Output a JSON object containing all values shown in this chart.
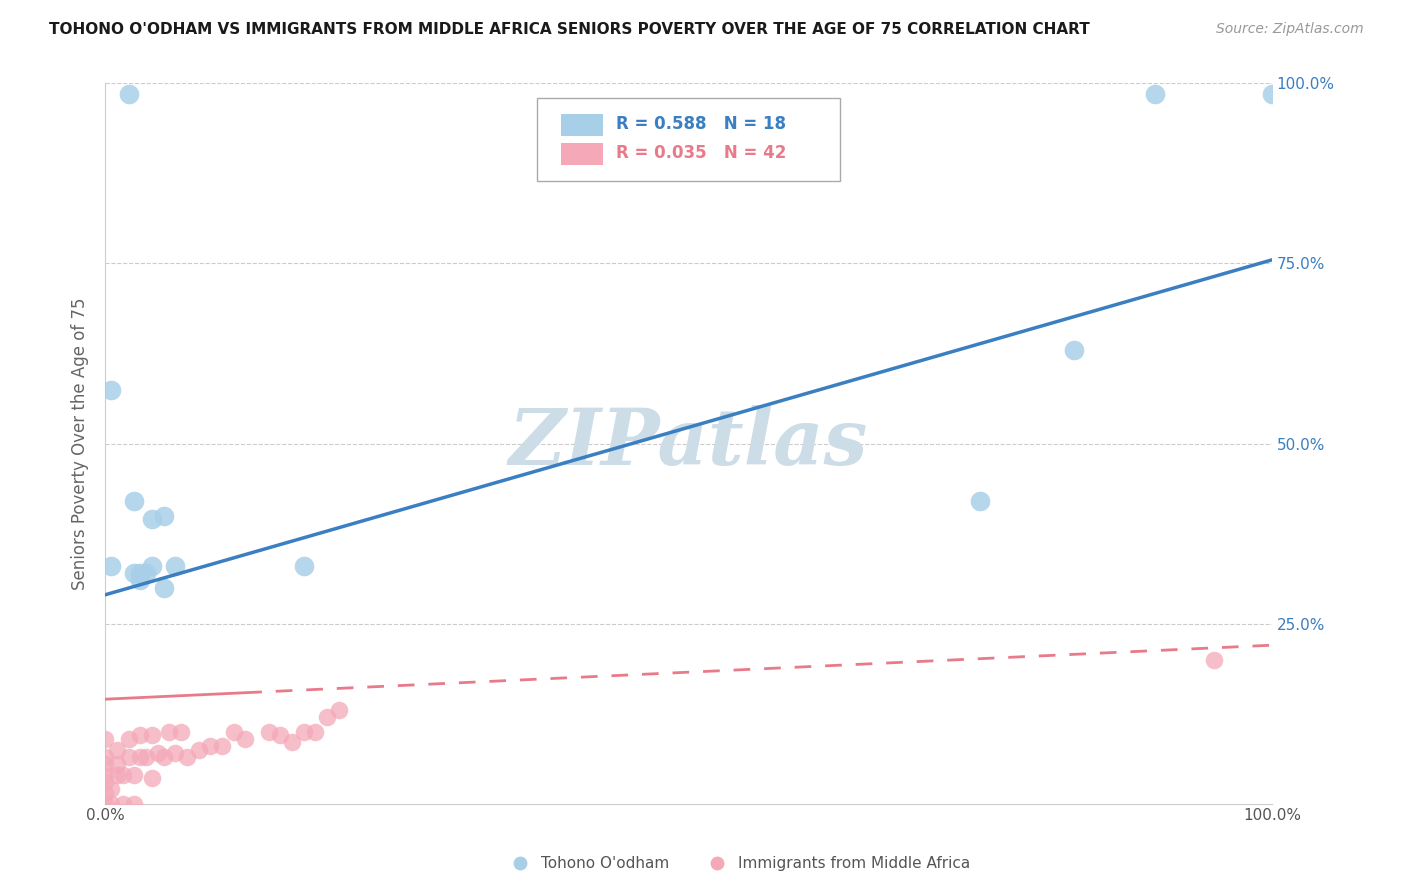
{
  "title": "TOHONO O'ODHAM VS IMMIGRANTS FROM MIDDLE AFRICA SENIORS POVERTY OVER THE AGE OF 75 CORRELATION CHART",
  "source": "Source: ZipAtlas.com",
  "ylabel": "Seniors Poverty Over the Age of 75",
  "xlim": [
    0.0,
    1.0
  ],
  "ylim": [
    0.0,
    1.0
  ],
  "xticks": [
    0.0,
    0.25,
    0.5,
    0.75,
    1.0
  ],
  "xtick_labels": [
    "0.0%",
    "",
    "",
    "",
    "100.0%"
  ],
  "yticks": [
    0.25,
    0.5,
    0.75,
    1.0
  ],
  "ytick_labels": [
    "25.0%",
    "50.0%",
    "75.0%",
    "100.0%"
  ],
  "blue_R": 0.588,
  "blue_N": 18,
  "pink_R": 0.035,
  "pink_N": 42,
  "blue_color": "#a8cfe8",
  "pink_color": "#f4a8b8",
  "blue_line_color": "#3a7fc1",
  "pink_line_color": "#e87a8a",
  "watermark": "ZIPatlas",
  "watermark_color": "#ccdde8",
  "blue_scatter_x": [
    0.02,
    0.005,
    0.005,
    0.03,
    0.04,
    0.025,
    0.05,
    0.035,
    0.17,
    0.06,
    0.05,
    0.04,
    0.03,
    0.025,
    0.75,
    0.83,
    0.9,
    1.0
  ],
  "blue_scatter_y": [
    0.985,
    0.575,
    0.33,
    0.31,
    0.33,
    0.32,
    0.3,
    0.32,
    0.33,
    0.33,
    0.4,
    0.395,
    0.32,
    0.42,
    0.42,
    0.63,
    0.985,
    0.985
  ],
  "pink_scatter_x": [
    0.0,
    0.0,
    0.0,
    0.0,
    0.0,
    0.0,
    0.0,
    0.005,
    0.005,
    0.01,
    0.01,
    0.01,
    0.015,
    0.015,
    0.02,
    0.02,
    0.025,
    0.025,
    0.03,
    0.03,
    0.035,
    0.04,
    0.04,
    0.045,
    0.05,
    0.055,
    0.06,
    0.065,
    0.07,
    0.08,
    0.09,
    0.1,
    0.11,
    0.12,
    0.14,
    0.15,
    0.16,
    0.17,
    0.18,
    0.19,
    0.2,
    0.95
  ],
  "pink_scatter_y": [
    0.0,
    0.015,
    0.03,
    0.04,
    0.055,
    0.065,
    0.09,
    0.0,
    0.02,
    0.04,
    0.055,
    0.075,
    0.0,
    0.04,
    0.065,
    0.09,
    0.0,
    0.04,
    0.065,
    0.095,
    0.065,
    0.095,
    0.035,
    0.07,
    0.065,
    0.1,
    0.07,
    0.1,
    0.065,
    0.075,
    0.08,
    0.08,
    0.1,
    0.09,
    0.1,
    0.095,
    0.085,
    0.1,
    0.1,
    0.12,
    0.13,
    0.2
  ],
  "blue_line_y0": 0.29,
  "blue_line_y1": 0.755,
  "pink_line_y0": 0.145,
  "pink_line_y1": 0.22,
  "figsize": [
    14.06,
    8.92
  ],
  "dpi": 100
}
